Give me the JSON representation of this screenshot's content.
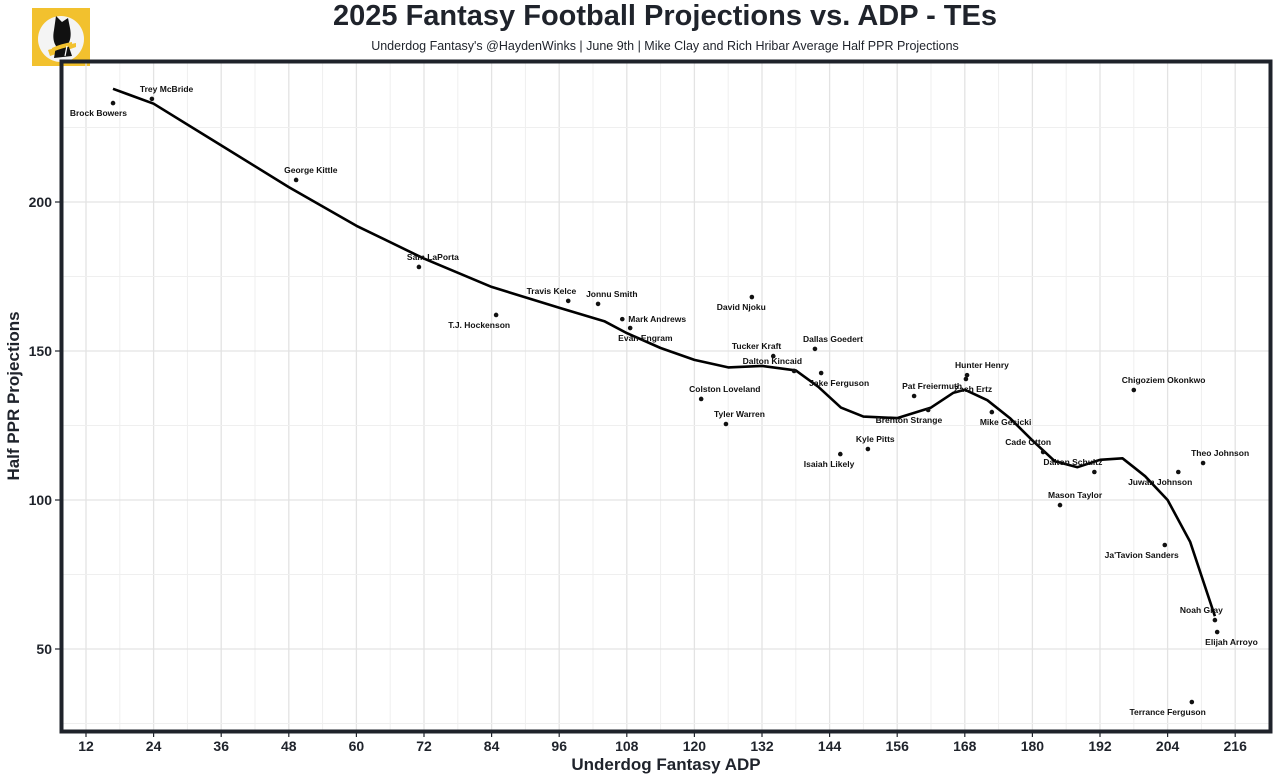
{
  "chart_data": {
    "type": "scatter",
    "title": "2025 Fantasy Football Projections vs. ADP - TEs",
    "subtitle": "Underdog Fantasy's @HaydenWinks | June 9th | Mike Clay and Rich Hribar Average Half PPR Projections",
    "xlabel": "Underdog Fantasy ADP",
    "ylabel": "Half PPR Projections",
    "xlim": [
      7.5,
      226
    ],
    "ylim": [
      24,
      245
    ],
    "x_ticks": [
      12,
      24,
      36,
      48,
      60,
      72,
      84,
      96,
      108,
      120,
      132,
      144,
      156,
      168,
      180,
      192,
      204,
      216
    ],
    "y_ticks": [
      50,
      100,
      150,
      200
    ],
    "grid": true,
    "colors": {
      "frame": "#1f232b",
      "logo_bg": "#f2c12e",
      "grid": "#e6e6e6",
      "points": "#111111",
      "trend": "#000000"
    },
    "points": [
      {
        "name": "Brock Bowers",
        "x": 16.8,
        "y": 233.2,
        "label_pos": "below-left"
      },
      {
        "name": "Trey McBride",
        "x": 23.7,
        "y": 234.6,
        "label_pos": "above-right"
      },
      {
        "name": "George Kittle",
        "x": 49.3,
        "y": 207.4,
        "label_pos": "above-right"
      },
      {
        "name": "Sam LaPorta",
        "x": 71.1,
        "y": 178.2,
        "label_pos": "above-right"
      },
      {
        "name": "T.J. Hockenson",
        "x": 84.8,
        "y": 162.1,
        "label_pos": "below-left"
      },
      {
        "name": "Travis Kelce",
        "x": 97.6,
        "y": 166.8,
        "label_pos": "above-left"
      },
      {
        "name": "Jonnu Smith",
        "x": 102.9,
        "y": 165.8,
        "label_pos": "above-right"
      },
      {
        "name": "Mark Andrews",
        "x": 107.2,
        "y": 160.7,
        "label_pos": "right"
      },
      {
        "name": "Evan Engram",
        "x": 108.6,
        "y": 157.7,
        "label_pos": "below-right"
      },
      {
        "name": "David Njoku",
        "x": 130.2,
        "y": 168.1,
        "label_pos": "below-left"
      },
      {
        "name": "Tucker Kraft",
        "x": 134.0,
        "y": 148.3,
        "label_pos": "above-left"
      },
      {
        "name": "Dalton Kincaid",
        "x": 137.7,
        "y": 143.3,
        "label_pos": "above-left"
      },
      {
        "name": "Dallas Goedert",
        "x": 141.4,
        "y": 150.7,
        "label_pos": "above-right"
      },
      {
        "name": "Jake Ferguson",
        "x": 142.5,
        "y": 142.6,
        "label_pos": "below-right"
      },
      {
        "name": "Colston Loveland",
        "x": 121.2,
        "y": 133.9,
        "label_pos": "above-right"
      },
      {
        "name": "Tyler Warren",
        "x": 125.6,
        "y": 125.5,
        "label_pos": "above-right"
      },
      {
        "name": "Isaiah Likely",
        "x": 145.9,
        "y": 115.4,
        "label_pos": "below-left"
      },
      {
        "name": "Kyle Pitts",
        "x": 150.8,
        "y": 117.1,
        "label_pos": "above-right"
      },
      {
        "name": "Pat Freiermuth",
        "x": 159.0,
        "y": 134.9,
        "label_pos": "above-right"
      },
      {
        "name": "Brenton Strange",
        "x": 161.5,
        "y": 130.2,
        "label_pos": "below-left"
      },
      {
        "name": "Hunter Henry",
        "x": 168.4,
        "y": 141.9,
        "label_pos": "above-right"
      },
      {
        "name": "Zach Ertz",
        "x": 168.2,
        "y": 140.6,
        "label_pos": "below-right"
      },
      {
        "name": "Mike Gesicki",
        "x": 172.8,
        "y": 129.5,
        "label_pos": "below-right"
      },
      {
        "name": "Cade Otton",
        "x": 181.9,
        "y": 116.1,
        "label_pos": "above-left"
      },
      {
        "name": "Dalton Schultz",
        "x": 191.0,
        "y": 109.4,
        "label_pos": "above-left"
      },
      {
        "name": "Mason Taylor",
        "x": 184.9,
        "y": 98.3,
        "label_pos": "above-right"
      },
      {
        "name": "Chigoziem Okonkwo",
        "x": 198.0,
        "y": 136.9,
        "label_pos": "above-right"
      },
      {
        "name": "Juwan Johnson",
        "x": 205.9,
        "y": 109.4,
        "label_pos": "below-left"
      },
      {
        "name": "Theo Johnson",
        "x": 210.3,
        "y": 112.4,
        "label_pos": "above-right"
      },
      {
        "name": "Ja'Tavion Sanders",
        "x": 203.5,
        "y": 84.9,
        "label_pos": "below-left"
      },
      {
        "name": "Noah Gray",
        "x": 212.4,
        "y": 59.7,
        "label_pos": "above-left"
      },
      {
        "name": "Elijah Arroyo",
        "x": 212.8,
        "y": 55.7,
        "label_pos": "below-right"
      },
      {
        "name": "Terrance Ferguson",
        "x": 208.3,
        "y": 32.2,
        "label_pos": "below-left"
      }
    ],
    "trend_line": {
      "x": [
        16.8,
        24,
        36,
        48,
        60,
        72,
        84,
        96,
        104,
        108,
        114,
        120,
        126,
        132,
        138,
        142,
        146,
        150,
        156,
        162,
        166,
        168,
        172,
        176,
        180,
        184,
        188,
        192,
        196,
        198,
        200,
        204,
        208,
        212.4
      ],
      "y": [
        238,
        233,
        219,
        205,
        192,
        181,
        171.5,
        164.5,
        160,
        156,
        151,
        147,
        144.5,
        145,
        143.5,
        138,
        131,
        128,
        127.5,
        131,
        136,
        137,
        133.5,
        127.5,
        120,
        113,
        111,
        113.5,
        114,
        111,
        108,
        100,
        86,
        61
      ]
    }
  }
}
